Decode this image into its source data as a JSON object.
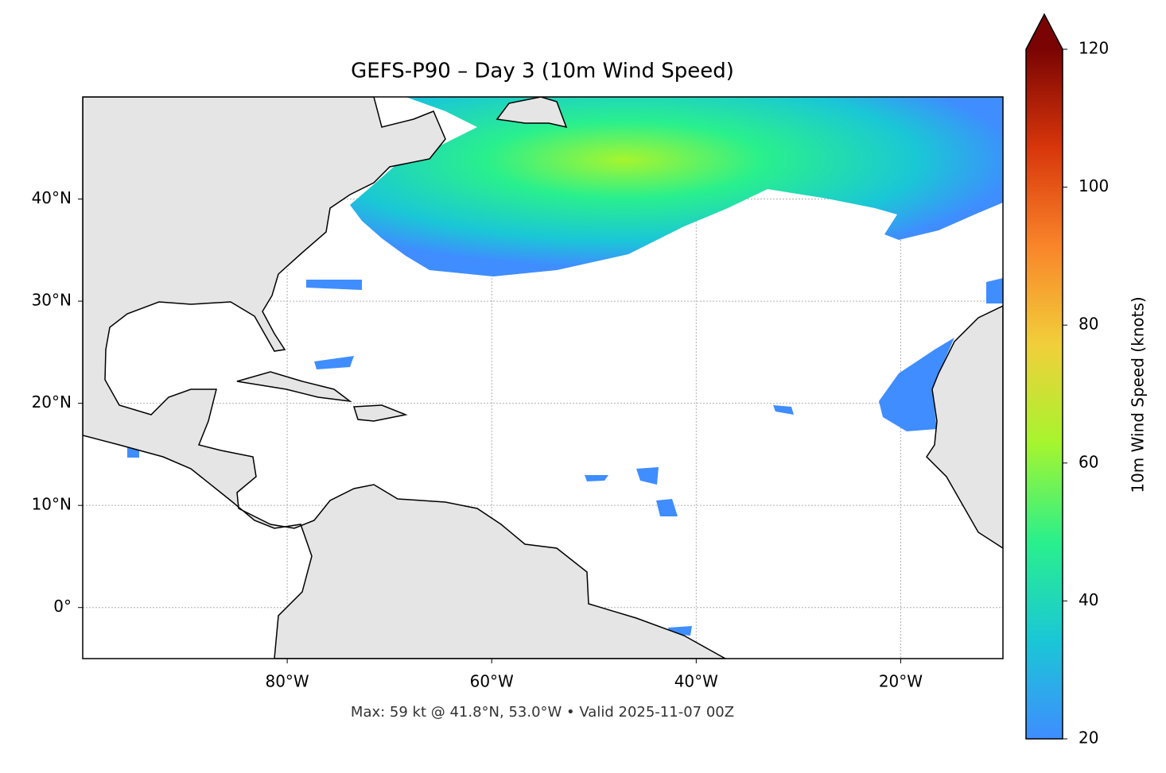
{
  "chart_data": {
    "type": "map",
    "title": "GEFS-P90 – Day 3 (10m Wind Speed)",
    "footer": "Max: 59 kt @ 41.8°N, 53.0°W • Valid 2025-11-07 00Z",
    "xlim": [
      -100,
      -10
    ],
    "ylim": [
      -5,
      50
    ],
    "xticks": [
      {
        "value": -80,
        "label": "80°W"
      },
      {
        "value": -60,
        "label": "60°W"
      },
      {
        "value": -40,
        "label": "40°W"
      },
      {
        "value": -20,
        "label": "20°W"
      }
    ],
    "yticks": [
      {
        "value": 0,
        "label": "0°"
      },
      {
        "value": 10,
        "label": "10°N"
      },
      {
        "value": 20,
        "label": "20°N"
      },
      {
        "value": 30,
        "label": "30°N"
      },
      {
        "value": 40,
        "label": "40°N"
      }
    ],
    "grid": true,
    "colorbar": {
      "label": "10m Wind Speed (knots)",
      "clim": [
        20,
        120
      ],
      "ticks": [
        20,
        40,
        60,
        80,
        100,
        120
      ],
      "colormap": [
        "#3f8dff",
        "#1ac7d6",
        "#2af08c",
        "#a6f52e",
        "#f1cf3a",
        "#f9852a",
        "#d8360b",
        "#7a0403"
      ]
    }
  }
}
